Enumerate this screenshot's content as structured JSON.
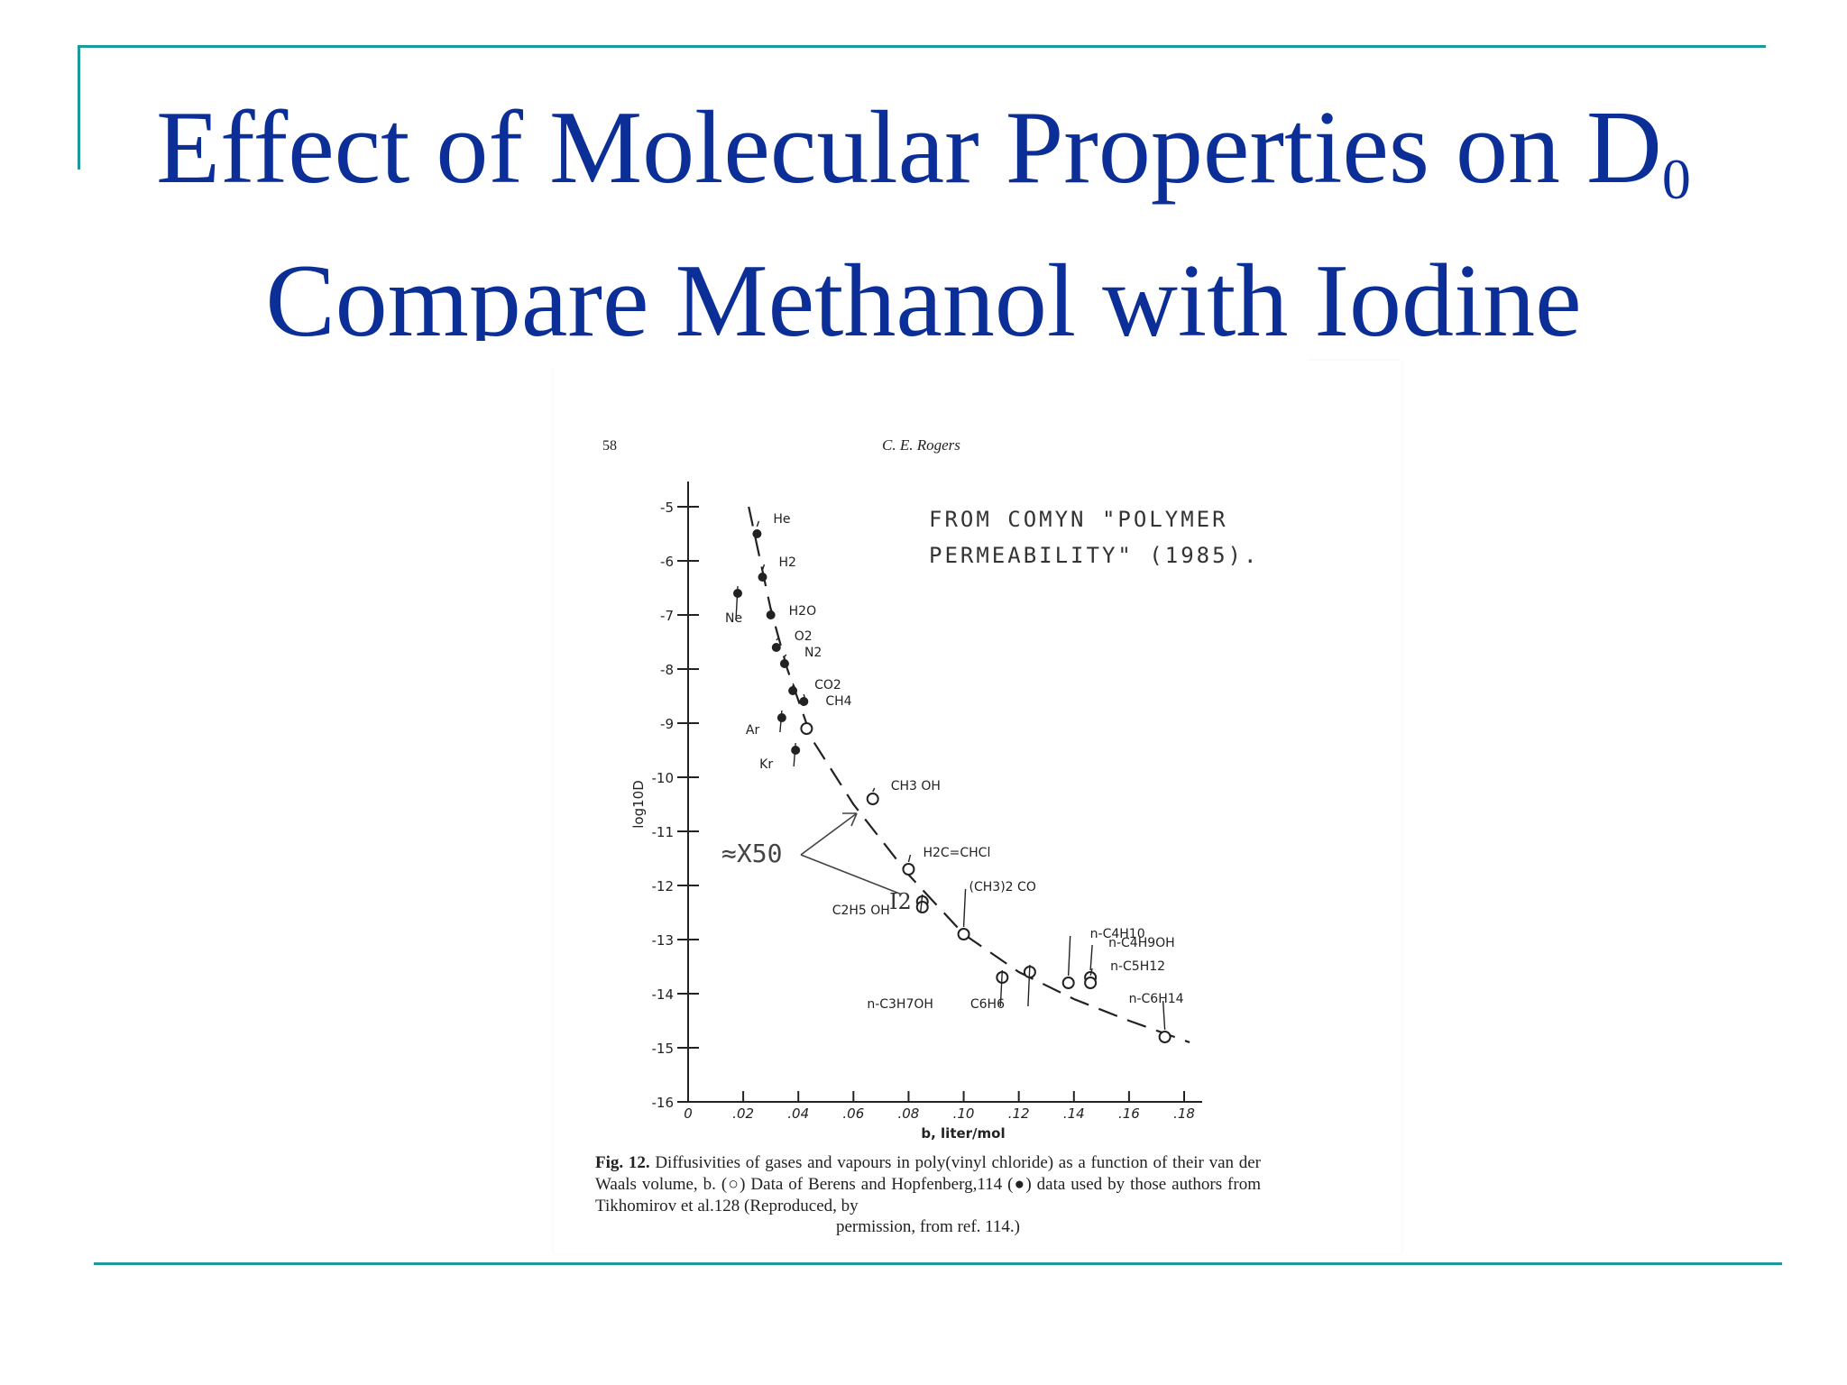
{
  "slide": {
    "title_line1": "Effect of Molecular Properties on D",
    "title_line1_sub": "0",
    "title_line2": "Compare Methanol with Iodine"
  },
  "page_header": {
    "page_number": "58",
    "author": "C. E. Rogers"
  },
  "annotations": {
    "source_note_line1": "FROM COMYN \"POLYMER",
    "source_note_line2": "PERMEABILITY\" (1985).",
    "ratio_note": "≈X50",
    "iodine_label": "I2"
  },
  "caption": {
    "label": "Fig. 12.",
    "text": "Diffusivities of gases and vapours in poly(vinyl chloride) as a function of their van der Waals volume, b. (○) Data of Berens and Hopfenberg,114 (●) data used by those authors from Tikhomirov et al.128 (Reproduced, by",
    "text_end": "permission, from ref. 114.)"
  },
  "chart_data": {
    "type": "scatter",
    "xlabel": "b, liter/mol",
    "ylabel": "log10D",
    "xlim": [
      0,
      0.18
    ],
    "ylim": [
      -16,
      -5
    ],
    "x_ticks": [
      "0",
      ".02",
      ".04",
      ".06",
      ".08",
      ".10",
      ".12",
      ".14",
      ".16",
      ".18"
    ],
    "y_ticks": [
      "-5",
      "-6",
      "-7",
      "-8",
      "-9",
      "-10",
      "-11",
      "-12",
      "-13",
      "-14",
      "-15",
      "-16"
    ],
    "series": [
      {
        "name": "(●) Tikhomirov et al.",
        "marker": "filled",
        "points": [
          {
            "label": "He",
            "x": 0.025,
            "y": -5.5
          },
          {
            "label": "H2",
            "x": 0.027,
            "y": -6.3
          },
          {
            "label": "Ne",
            "x": 0.018,
            "y": -6.6
          },
          {
            "label": "H2O",
            "x": 0.03,
            "y": -7.0
          },
          {
            "label": "O2",
            "x": 0.032,
            "y": -7.6
          },
          {
            "label": "N2",
            "x": 0.035,
            "y": -7.9
          },
          {
            "label": "CO2",
            "x": 0.038,
            "y": -8.4
          },
          {
            "label": "CH4",
            "x": 0.042,
            "y": -8.6
          },
          {
            "label": "Ar",
            "x": 0.034,
            "y": -8.9
          },
          {
            "label": "Kr",
            "x": 0.039,
            "y": -9.5
          }
        ]
      },
      {
        "name": "(○) Berens and Hopfenberg",
        "marker": "open",
        "points": [
          {
            "label": "",
            "x": 0.043,
            "y": -9.1
          },
          {
            "label": "CH3 OH",
            "x": 0.067,
            "y": -10.4
          },
          {
            "label": "H2C=CHCl",
            "x": 0.08,
            "y": -11.7
          },
          {
            "label": "C2H5 OH",
            "x": 0.085,
            "y": -12.3
          },
          {
            "label": "(CH3)2 CO",
            "x": 0.1,
            "y": -12.9
          },
          {
            "label": "n-C3H7OH",
            "x": 0.114,
            "y": -13.7
          },
          {
            "label": "C6H6",
            "x": 0.124,
            "y": -13.6
          },
          {
            "label": "n-C4H10",
            "x": 0.138,
            "y": -13.8
          },
          {
            "label": "n-C4H9OH",
            "x": 0.146,
            "y": -13.7
          },
          {
            "label": "n-C5H12",
            "x": 0.146,
            "y": -13.8
          },
          {
            "label": "n-C6H14",
            "x": 0.173,
            "y": -14.8
          }
        ]
      }
    ],
    "trend_curve": [
      {
        "x": 0.022,
        "y": -5.0
      },
      {
        "x": 0.03,
        "y": -6.9
      },
      {
        "x": 0.036,
        "y": -8.0
      },
      {
        "x": 0.045,
        "y": -9.3
      },
      {
        "x": 0.06,
        "y": -10.5
      },
      {
        "x": 0.08,
        "y": -11.8
      },
      {
        "x": 0.1,
        "y": -12.9
      },
      {
        "x": 0.12,
        "y": -13.6
      },
      {
        "x": 0.14,
        "y": -14.1
      },
      {
        "x": 0.16,
        "y": -14.5
      },
      {
        "x": 0.182,
        "y": -14.9
      }
    ]
  }
}
